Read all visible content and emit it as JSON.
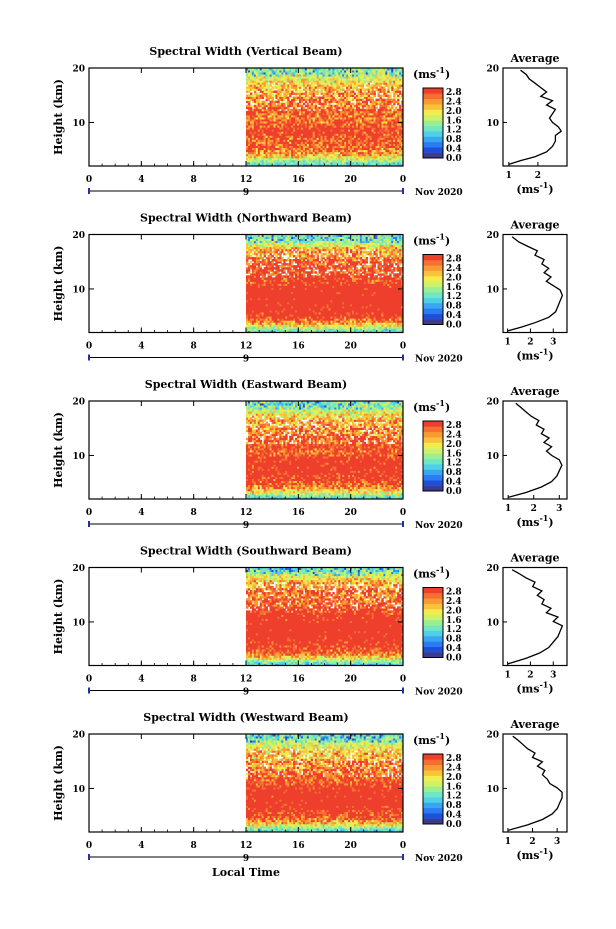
{
  "chart_data": {
    "type": "heatmap",
    "xlabel": "Local Time",
    "x_ticks": [
      "0",
      "4",
      "8",
      "12",
      "16",
      "20",
      "0"
    ],
    "date_marker": "9",
    "month_label": "Nov 2020",
    "xlim_hours": [
      0,
      24
    ],
    "data_start_hour": 12,
    "ylabel": "Height (km)",
    "ylim_km": [
      2,
      20
    ],
    "y_ticks": [
      "20",
      "10"
    ],
    "colorbar": {
      "unit_prefix": "(ms",
      "unit_exp": "-1",
      "unit_suffix": ")",
      "range": [
        0,
        3
      ],
      "tick_labels": [
        "2.8",
        "2.4",
        "2.0",
        "1.6",
        "1.2",
        "0.8",
        "0.4",
        "0.0"
      ],
      "colors": [
        "#3b3c8f",
        "#1f4fd6",
        "#2b7bf5",
        "#3aa6f2",
        "#4fd0e8",
        "#6fe6c4",
        "#9bef91",
        "#cdf26a",
        "#f3ec4f",
        "#f9c23a",
        "#f99a32",
        "#f56f31",
        "#ee3f2d"
      ]
    },
    "panels": [
      {
        "title": "Spectral Width (Vertical Beam)",
        "avg_title": "Average",
        "avg_xlim": [
          0.8,
          3.0
        ],
        "avg_ticks": [
          "1",
          "2"
        ],
        "avg_tick_values": [
          1,
          2
        ],
        "avg_xlabel": "(ms-1)",
        "profile": [
          [
            1.0,
            2.3
          ],
          [
            1.4,
            3.0
          ],
          [
            1.9,
            3.7
          ],
          [
            2.3,
            4.6
          ],
          [
            2.5,
            5.6
          ],
          [
            2.6,
            6.6
          ],
          [
            2.6,
            7.6
          ],
          [
            2.8,
            8.4
          ],
          [
            2.7,
            9.2
          ],
          [
            2.5,
            10.0
          ],
          [
            2.4,
            10.8
          ],
          [
            2.5,
            11.6
          ],
          [
            2.6,
            12.4
          ],
          [
            2.3,
            13.2
          ],
          [
            2.5,
            14.0
          ],
          [
            2.1,
            14.8
          ],
          [
            2.3,
            15.6
          ],
          [
            2.1,
            16.4
          ],
          [
            1.9,
            17.2
          ],
          [
            1.7,
            18.0
          ],
          [
            1.6,
            18.8
          ],
          [
            1.4,
            19.6
          ]
        ]
      },
      {
        "title": "Spectral Width (Northward Beam)",
        "avg_title": "Average",
        "avg_xlim": [
          0.8,
          3.6
        ],
        "avg_ticks": [
          "1",
          "2",
          "3"
        ],
        "avg_tick_values": [
          1,
          2,
          3
        ],
        "avg_xlabel": "(ms-1)",
        "profile": [
          [
            1.0,
            2.3
          ],
          [
            1.6,
            3.0
          ],
          [
            2.2,
            3.8
          ],
          [
            2.8,
            4.8
          ],
          [
            3.1,
            5.8
          ],
          [
            3.2,
            6.8
          ],
          [
            3.3,
            7.8
          ],
          [
            3.4,
            8.8
          ],
          [
            3.3,
            9.8
          ],
          [
            3.0,
            10.6
          ],
          [
            2.7,
            11.4
          ],
          [
            2.9,
            12.2
          ],
          [
            2.6,
            13.0
          ],
          [
            2.8,
            13.8
          ],
          [
            2.5,
            14.6
          ],
          [
            2.6,
            15.4
          ],
          [
            2.2,
            16.2
          ],
          [
            2.3,
            17.0
          ],
          [
            1.9,
            17.8
          ],
          [
            1.5,
            18.6
          ],
          [
            1.2,
            19.6
          ]
        ]
      },
      {
        "title": "Spectral Width (Eastward Beam)",
        "avg_title": "Average",
        "avg_xlim": [
          0.8,
          3.3
        ],
        "avg_ticks": [
          "1",
          "2",
          "3"
        ],
        "avg_tick_values": [
          1,
          2,
          3
        ],
        "avg_xlabel": "(ms-1)",
        "profile": [
          [
            1.0,
            2.3
          ],
          [
            1.7,
            3.2
          ],
          [
            2.3,
            4.2
          ],
          [
            2.7,
            5.2
          ],
          [
            2.9,
            6.2
          ],
          [
            3.0,
            7.2
          ],
          [
            3.1,
            8.2
          ],
          [
            3.0,
            9.2
          ],
          [
            2.7,
            10.0
          ],
          [
            2.5,
            10.8
          ],
          [
            2.7,
            11.6
          ],
          [
            2.4,
            12.4
          ],
          [
            2.6,
            13.2
          ],
          [
            2.3,
            14.0
          ],
          [
            2.4,
            14.8
          ],
          [
            2.1,
            15.6
          ],
          [
            2.2,
            16.4
          ],
          [
            1.9,
            17.2
          ],
          [
            1.7,
            18.0
          ],
          [
            1.5,
            18.8
          ],
          [
            1.3,
            19.6
          ]
        ]
      },
      {
        "title": "Spectral Width (Southward Beam)",
        "avg_title": "Average",
        "avg_xlim": [
          0.8,
          3.6
        ],
        "avg_ticks": [
          "1",
          "2",
          "3"
        ],
        "avg_tick_values": [
          1,
          2,
          3
        ],
        "avg_xlabel": "(ms-1)",
        "profile": [
          [
            1.0,
            2.3
          ],
          [
            1.8,
            3.3
          ],
          [
            2.4,
            4.3
          ],
          [
            2.8,
            5.3
          ],
          [
            3.0,
            6.3
          ],
          [
            3.2,
            7.3
          ],
          [
            3.3,
            8.3
          ],
          [
            3.4,
            9.3
          ],
          [
            3.0,
            10.1
          ],
          [
            3.2,
            10.9
          ],
          [
            2.7,
            11.7
          ],
          [
            2.9,
            12.5
          ],
          [
            2.5,
            13.3
          ],
          [
            2.6,
            14.1
          ],
          [
            2.3,
            14.9
          ],
          [
            2.5,
            15.7
          ],
          [
            2.1,
            16.5
          ],
          [
            2.2,
            17.3
          ],
          [
            1.8,
            18.1
          ],
          [
            1.5,
            18.9
          ],
          [
            1.2,
            19.6
          ]
        ]
      },
      {
        "title": "Spectral Width (Westward Beam)",
        "avg_title": "Average",
        "avg_xlim": [
          0.8,
          3.4
        ],
        "avg_ticks": [
          "1",
          "2",
          "3"
        ],
        "avg_tick_values": [
          1,
          2,
          3
        ],
        "avg_xlabel": "(ms-1)",
        "profile": [
          [
            1.0,
            2.3
          ],
          [
            1.8,
            3.3
          ],
          [
            2.4,
            4.3
          ],
          [
            2.8,
            5.3
          ],
          [
            3.0,
            6.3
          ],
          [
            3.1,
            7.3
          ],
          [
            3.2,
            8.3
          ],
          [
            3.2,
            9.3
          ],
          [
            3.0,
            10.1
          ],
          [
            2.7,
            10.9
          ],
          [
            2.6,
            11.7
          ],
          [
            2.4,
            12.5
          ],
          [
            2.5,
            13.3
          ],
          [
            2.2,
            14.1
          ],
          [
            2.4,
            14.9
          ],
          [
            2.0,
            15.7
          ],
          [
            2.1,
            16.5
          ],
          [
            1.8,
            17.3
          ],
          [
            1.6,
            18.1
          ],
          [
            1.4,
            18.9
          ],
          [
            1.2,
            19.6
          ]
        ]
      }
    ]
  }
}
